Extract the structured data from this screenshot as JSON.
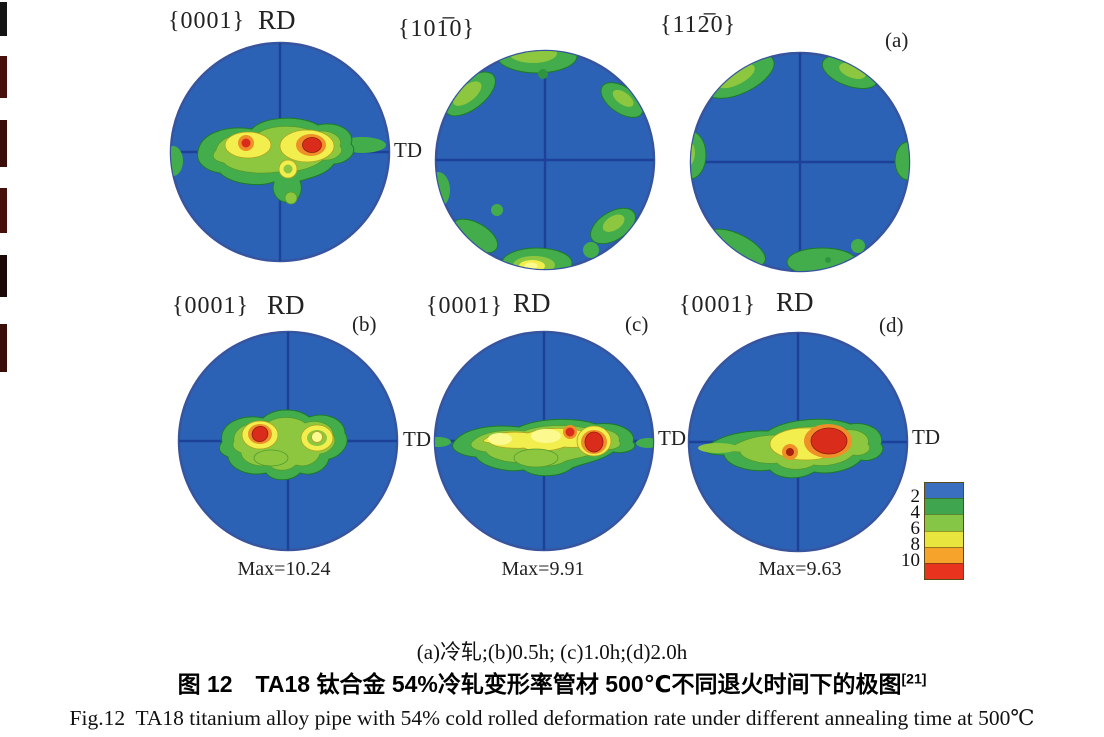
{
  "panels": {
    "row1": [
      {
        "plane": "{0001}",
        "rd": "RD",
        "td": "TD"
      },
      {
        "plane": "{101̅0}"
      },
      {
        "plane": "{112̅0}",
        "marker": "(a)"
      }
    ],
    "row2": [
      {
        "plane": "{0001}",
        "rd": "RD",
        "td": "TD",
        "marker": "(b)",
        "max": "Max=10.24"
      },
      {
        "plane": "{0001}",
        "rd": "RD",
        "td": "TD",
        "marker": "(c)",
        "max": "Max=9.91"
      },
      {
        "plane": "{0001}",
        "rd": "RD",
        "td": "TD",
        "marker": "(d)",
        "max": "Max=9.63"
      }
    ]
  },
  "legend": {
    "levels": [
      "2",
      "4",
      "6",
      "8",
      "10"
    ],
    "band_colors": [
      "#3a6fc0",
      "#3fa54e",
      "#86c646",
      "#e8e53e",
      "#f5a32b",
      "#e8341f"
    ]
  },
  "captions": {
    "subcaption": "(a)冷轧;(b)0.5h; (c)1.0h;(d)2.0h",
    "zh_caption": "图 12　TA18 钛合金 54%冷轧变形率管材 500℃不同退火时间下的极图",
    "zh_ref": "[21]",
    "en_caption": "Fig.12  TA18 titanium alloy pipe with 54% cold rolled deformation rate under different annealing time at 500℃"
  },
  "colors": {
    "pole_background": "#2b62b6",
    "crosshair": "#1d4196",
    "contour_green": "#43ad4b",
    "contour_light_green": "#8cc73f",
    "contour_yellow": "#f1ee4e",
    "contour_orange": "#ef8f28",
    "contour_red": "#da2c1a"
  },
  "chart_data": {
    "type": "pole_figure_contour_maps",
    "title_zh": "图 12　TA18 钛合金 54%冷轧变形率管材 500℃不同退火时间下的极图",
    "title_en": "Fig.12 TA18 titanium alloy pipe with 54% cold rolled deformation rate under different annealing time at 500℃",
    "reference": "[21]",
    "panels": [
      {
        "id": "(a)",
        "condition": "冷轧",
        "planes": [
          "{0001}",
          "{101̅0}",
          "{112̅0}"
        ]
      },
      {
        "id": "(b)",
        "condition": "0.5h",
        "planes": [
          "{0001}"
        ],
        "max_intensity": 10.24
      },
      {
        "id": "(c)",
        "condition": "1.0h",
        "planes": [
          "{0001}"
        ],
        "max_intensity": 9.91
      },
      {
        "id": "(d)",
        "condition": "2.0h",
        "planes": [
          "{0001}"
        ],
        "max_intensity": 9.63
      }
    ],
    "axis_labels": {
      "top": "RD",
      "right": "TD"
    },
    "intensity_scale_levels": [
      2,
      4,
      6,
      8,
      10
    ],
    "material": "TA18 titanium alloy pipe",
    "cold_rolled_deformation_rate": "54%",
    "annealing_temperature": "500℃"
  }
}
